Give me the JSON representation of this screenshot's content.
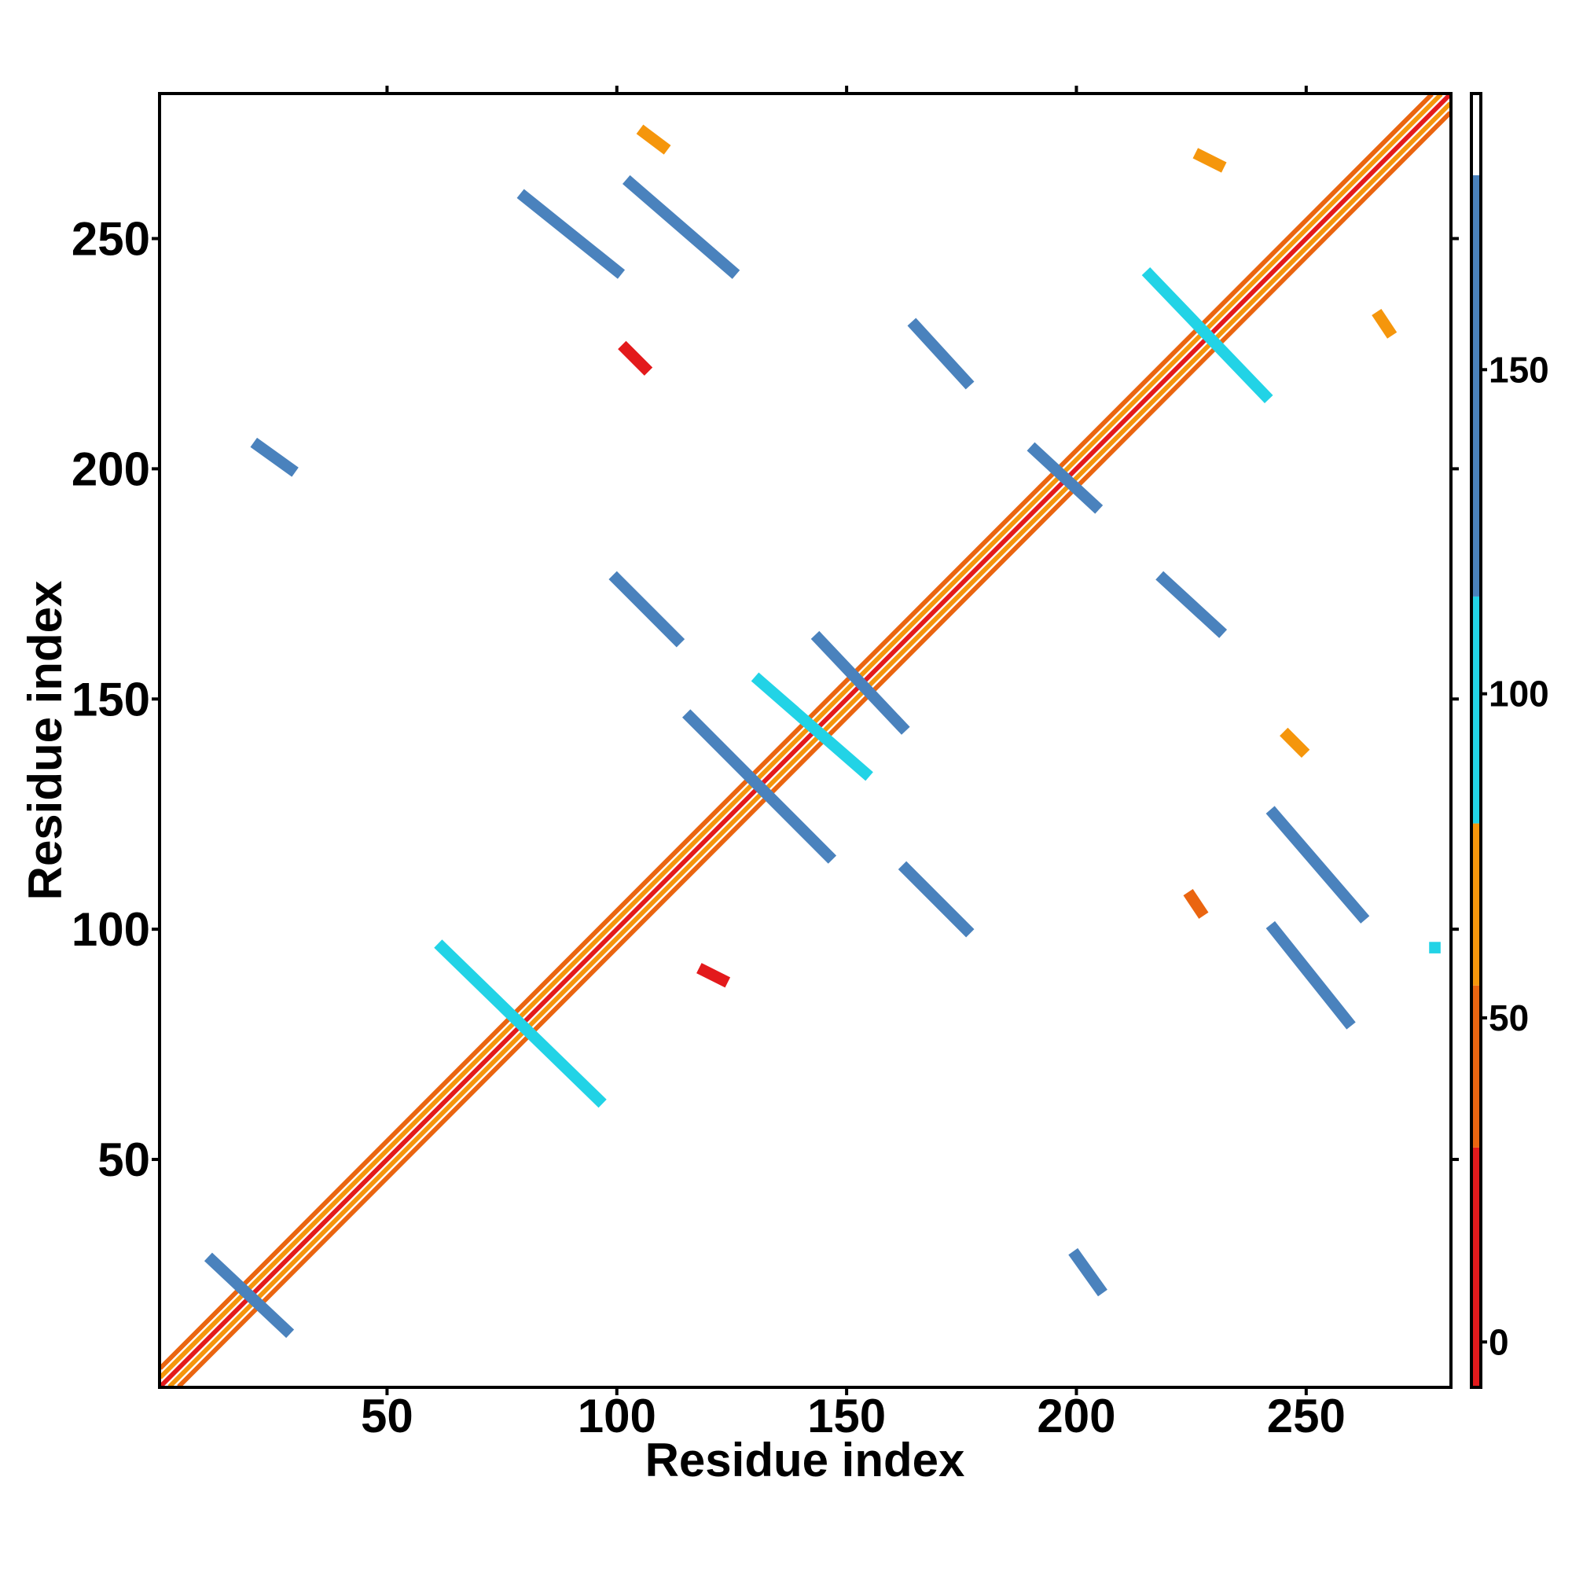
{
  "chart_data": {
    "type": "heatmap",
    "xlabel": "Residue index",
    "ylabel": "Residue index",
    "xlim": [
      0.5,
      281.5
    ],
    "ylim": [
      0.5,
      281.5
    ],
    "xticks": [
      50,
      100,
      150,
      200,
      250
    ],
    "yticks": [
      50,
      100,
      150,
      200,
      250
    ],
    "colorbar": {
      "lim": [
        -7,
        192.6
      ],
      "ticks": [
        0,
        50,
        100,
        150
      ],
      "bins": [
        -7,
        30,
        55,
        80,
        115,
        180,
        192.6
      ],
      "colors": [
        "#e31a1c",
        "#ea6510",
        "#f5960c",
        "#22d3e6",
        "#4a82bd",
        "#ffffff"
      ]
    },
    "segments": [
      {
        "x": [
          1,
          281
        ],
        "y": [
          1,
          281
        ],
        "value": 10
      },
      {
        "x": [
          1,
          279
        ],
        "y": [
          3,
          281
        ],
        "value": 65
      },
      {
        "x": [
          3,
          281
        ],
        "y": [
          1,
          279
        ],
        "value": 65
      },
      {
        "x": [
          1,
          277
        ],
        "y": [
          5,
          281
        ],
        "value": 45
      },
      {
        "x": [
          5,
          281
        ],
        "y": [
          1,
          277
        ],
        "value": 45
      },
      {
        "x": [
          12,
          28
        ],
        "y": [
          28,
          13
        ],
        "value": 150
      },
      {
        "x": [
          22,
          29
        ],
        "y": [
          205,
          200
        ],
        "value": 150
      },
      {
        "x": [
          200,
          205
        ],
        "y": [
          29,
          22
        ],
        "value": 150
      },
      {
        "x": [
          62,
          96
        ],
        "y": [
          96,
          63
        ],
        "value": 95
      },
      {
        "x": [
          80,
          100
        ],
        "y": [
          259,
          243
        ],
        "value": 150
      },
      {
        "x": [
          243,
          259
        ],
        "y": [
          100,
          80
        ],
        "value": 150
      },
      {
        "x": [
          103,
          125
        ],
        "y": [
          262,
          243
        ],
        "value": 150
      },
      {
        "x": [
          243,
          262
        ],
        "y": [
          125,
          103
        ],
        "value": 150
      },
      {
        "x": [
          100,
          113
        ],
        "y": [
          176,
          163
        ],
        "value": 150
      },
      {
        "x": [
          163,
          176
        ],
        "y": [
          113,
          100
        ],
        "value": 150
      },
      {
        "x": [
          216,
          241
        ],
        "y": [
          242,
          216
        ],
        "value": 95
      },
      {
        "x": [
          191,
          204
        ],
        "y": [
          204,
          192
        ],
        "value": 150
      },
      {
        "x": [
          116,
          146
        ],
        "y": [
          146,
          116
        ],
        "value": 150
      },
      {
        "x": [
          131,
          154
        ],
        "y": [
          154,
          134
        ],
        "value": 95
      },
      {
        "x": [
          144,
          162
        ],
        "y": [
          163,
          144
        ],
        "value": 150
      },
      {
        "x": [
          165,
          176
        ],
        "y": [
          231,
          219
        ],
        "value": 150
      },
      {
        "x": [
          219,
          231
        ],
        "y": [
          176,
          165
        ],
        "value": 150
      },
      {
        "x": [
          106,
          110
        ],
        "y": [
          273,
          270
        ],
        "value": 65
      },
      {
        "x": [
          227,
          231
        ],
        "y": [
          268,
          266
        ],
        "value": 65
      },
      {
        "x": [
          266,
          268
        ],
        "y": [
          233,
          230
        ],
        "value": 65
      },
      {
        "x": [
          102,
          106
        ],
        "y": [
          226,
          222
        ],
        "value": 10
      },
      {
        "x": [
          119,
          123
        ],
        "y": [
          91,
          89
        ],
        "value": 10
      },
      {
        "x": [
          225,
          227
        ],
        "y": [
          107,
          104
        ],
        "value": 45
      },
      {
        "x": [
          246,
          249
        ],
        "y": [
          142,
          139
        ],
        "value": 65
      },
      {
        "x": [
          278,
          278
        ],
        "y": [
          96,
          96
        ],
        "value": 95
      }
    ]
  }
}
